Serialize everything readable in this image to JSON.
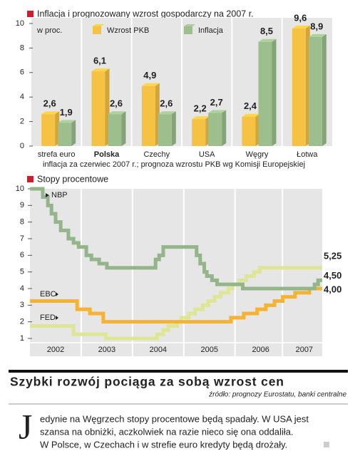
{
  "chart_data": [
    {
      "type": "bar",
      "title": "Inflacja i prognozowany wzrost gospodarczy na 2007 r.",
      "unit_label": "w proc.",
      "note": "inflacja za czerwiec 2007 r.; prognoza wzrostu PKB wg Komisji Europejskiej",
      "categories": [
        "strefa euro",
        "Polska",
        "Czechy",
        "USA",
        "Węgry",
        "Łotwa"
      ],
      "highlight_category": 1,
      "highlight_color": "#c8202f",
      "series": [
        {
          "name": "Wzrost PKB",
          "color": "#f6c243",
          "values": [
            2.6,
            6.1,
            4.9,
            2.2,
            2.4,
            9.6
          ],
          "value_labels": [
            "2,6",
            "6,1",
            "4,9",
            "2,2",
            "2,4",
            "9,6"
          ]
        },
        {
          "name": "Inflacja",
          "color": "#9dbf8e",
          "values": [
            1.9,
            2.6,
            2.6,
            2.7,
            8.5,
            8.9
          ],
          "value_labels": [
            "1,9",
            "2,6",
            "2,6",
            "2,7",
            "8,5",
            "8,9"
          ]
        }
      ],
      "ylim": [
        0,
        10
      ],
      "yticks": [
        0,
        2,
        4,
        6,
        8,
        10
      ]
    },
    {
      "type": "line",
      "title": "Stopy procentowe",
      "xlim": [
        2002,
        2007.7
      ],
      "xticks": [
        {
          "value": 2002.5,
          "label": "2002"
        },
        {
          "value": 2003.5,
          "label": "2003"
        },
        {
          "value": 2004.5,
          "label": "2004"
        },
        {
          "value": 2005.5,
          "label": "2005"
        },
        {
          "value": 2006.5,
          "label": "2006"
        },
        {
          "value": 2007.35,
          "label": "2007"
        }
      ],
      "ylim": [
        1,
        10
      ],
      "yticks": [
        1,
        2,
        3,
        4,
        5,
        6,
        7,
        8,
        9,
        10
      ],
      "step": true,
      "series": [
        {
          "name": "NBP",
          "color": "#93b589",
          "x": [
            2002.0,
            2002.25,
            2002.35,
            2002.42,
            2002.5,
            2002.6,
            2002.75,
            2002.85,
            2002.95,
            2003.1,
            2003.2,
            2003.35,
            2003.5,
            2004.45,
            2004.52,
            2004.6,
            2005.25,
            2005.32,
            2005.4,
            2005.45,
            2005.55,
            2005.65,
            2006.15,
            2007.55,
            2007.62,
            2007.7
          ],
          "values": [
            10,
            9.5,
            9,
            8.5,
            8,
            7.5,
            7,
            6.75,
            6.5,
            6,
            5.75,
            5.5,
            5.25,
            5.75,
            6,
            6.5,
            6,
            5.5,
            5,
            4.75,
            4.5,
            4.25,
            4,
            4.25,
            4.5,
            4.5
          ],
          "end_label": "4,50"
        },
        {
          "name": "EBC",
          "color": "#f5b335",
          "x": [
            2002.0,
            2002.92,
            2003.17,
            2003.43,
            2005.92,
            2006.17,
            2006.43,
            2006.6,
            2006.77,
            2006.93,
            2007.17,
            2007.45,
            2007.7
          ],
          "values": [
            3.25,
            2.75,
            2.5,
            2.0,
            2.25,
            2.5,
            2.75,
            3.0,
            3.25,
            3.5,
            3.75,
            4.0,
            4.0
          ],
          "end_label": "4,00"
        },
        {
          "name": "FED",
          "color": "#dfe596",
          "x": [
            2002.0,
            2002.85,
            2003.48,
            2004.48,
            2004.6,
            2004.7,
            2004.87,
            2004.95,
            2005.1,
            2005.22,
            2005.37,
            2005.48,
            2005.6,
            2005.72,
            2005.87,
            2005.95,
            2006.08,
            2006.22,
            2006.37,
            2006.48,
            2007.7
          ],
          "values": [
            1.75,
            1.25,
            1.0,
            1.25,
            1.5,
            1.75,
            2.0,
            2.25,
            2.5,
            2.75,
            3.0,
            3.25,
            3.5,
            3.75,
            4.0,
            4.25,
            4.5,
            4.75,
            5.0,
            5.25,
            5.25
          ],
          "end_label": "5,25"
        }
      ]
    }
  ],
  "article": {
    "headline": "Szybki rozwój pociąga za sobą wzrost cen",
    "source": "źródło: prognozy Eurostatu, banki centralne",
    "drop_cap": "J",
    "lines": [
      "edynie na Węgrzech stopy procentowe będą spadały. W USA jest",
      "szansa na obniżki, aczkolwiek na razie nieco się ona oddaliła.",
      "W Polsce, w Czechach i w strefie euro kredyty będą drożały."
    ]
  }
}
